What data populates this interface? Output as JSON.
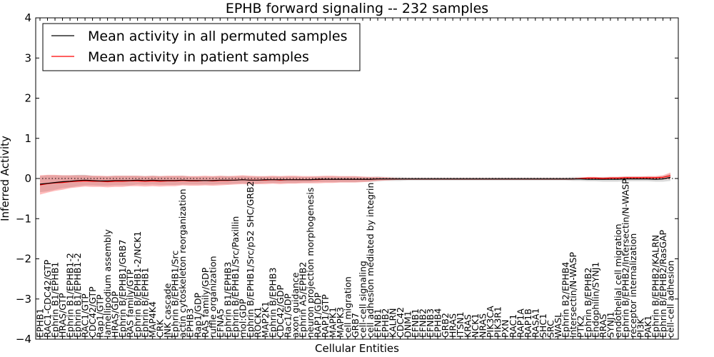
{
  "chart_data": {
    "type": "line",
    "title": "EPHB forward signaling -- 232 samples",
    "xlabel": "Cellular Entities",
    "ylabel": "Inferred Activity",
    "ylim": [
      -4,
      4
    ],
    "yticks": [
      "−4",
      "−3",
      "−2",
      "−1",
      "0",
      "1",
      "2",
      "3",
      "4"
    ],
    "yticks_values": [
      -4,
      -3,
      -2,
      -1,
      0,
      1,
      2,
      3,
      4
    ],
    "grid": false,
    "legend_position": "top-left",
    "legend": [
      {
        "label": "Mean activity in all permuted samples",
        "color": "#000000"
      },
      {
        "label": "Mean activity in patient samples",
        "color": "#ff0000"
      }
    ],
    "categories": [
      "EPHB1",
      "RAC1-CDC42/GTP",
      "Ephrin B1/EPHB1",
      "HRAS/GTP",
      "Ephrin B1/EPHB1-2",
      "Ephrin B1/EPHB1-2",
      "RAC1/GTP",
      "CDC42/GTP",
      "Rap1/GTP",
      "lamellipodium assembly",
      "HRAS/GDP",
      "Ephrin B/EPHB1/GRB7",
      "RAS family/GTP",
      "Ephrin B/EPHB1-2/NCK1",
      "Ephrin B/EPHB1",
      "MAP4K4",
      "CRK",
      "JNK cascade",
      "Ephrin B/EPHB1/Src",
      "actin cytoskeleton reorganization",
      "EPHB3",
      "Rap1/GDP",
      "RAS family/GDP",
      "ruffle organization",
      "EFNA5",
      "Ephrin B1/EPHB3",
      "Ephrin B/EPHB1/Src/Paxillin",
      "mol:GDP",
      "Ephrin B/EPHB1/Src/p52 SHC/GRB2",
      "ROCK1",
      "MAP2K1",
      "Ephrin B/EPHB3",
      "CDC42/GDP",
      "Rac1/GDP",
      "axon guidance",
      "Ephrin A5/EPHB2",
      "neuron projection morphogenesis",
      "RAP1/GDP",
      "RAP1/GTP",
      "MAPK1",
      "MAPK3",
      "cell migration",
      "GRB7",
      "cell-cell signaling",
      "cell adhesion mediated by integrin",
      "EFNB1",
      "EPHB2",
      "KALRN",
      "CDC42",
      "DNM1",
      "EFNB1",
      "EFNB2",
      "EFNB3",
      "EPHB4",
      "GRB2",
      "HRAS",
      "ITSN1",
      "KRAS",
      "NCK1",
      "NRAS",
      "PIK3CA",
      "PIK3R1",
      "PXN",
      "RAC1",
      "RAP1A",
      "RAP1B",
      "RASA1",
      "SHC1",
      "SRC",
      "WASL",
      "Ephrin B2/EPHB4",
      "Intersectin/N-WASP",
      "PTK2",
      "Ephrin B/EPHB2",
      "Endophilin/SYNJ1",
      "RRAS",
      "SYNJ1",
      "endothelial cell migration",
      "Ephrin B/EPHB2/Intersectin/N-WASP",
      "receptor internalization",
      "PI3K",
      "PAK1",
      "Ephrin B/EPHB2/KALRN",
      "Ephrin B/EPHB2/RasGAP",
      "cell-cell adhesion"
    ],
    "series": [
      {
        "name": "Mean activity in all permuted samples",
        "color": "#000000",
        "values": [
          -0.14,
          -0.12,
          -0.1,
          -0.08,
          -0.07,
          -0.05,
          -0.04,
          -0.05,
          -0.06,
          -0.06,
          -0.05,
          -0.05,
          -0.05,
          -0.04,
          -0.05,
          -0.04,
          -0.05,
          -0.05,
          -0.05,
          -0.04,
          -0.05,
          -0.05,
          -0.05,
          -0.05,
          -0.04,
          -0.04,
          -0.04,
          -0.03,
          -0.04,
          -0.04,
          -0.03,
          -0.03,
          -0.03,
          -0.03,
          -0.03,
          -0.03,
          -0.03,
          -0.02,
          -0.02,
          -0.02,
          -0.02,
          -0.02,
          -0.02,
          -0.02,
          -0.02,
          -0.01,
          -0.01,
          -0.01,
          -0.01,
          -0.01,
          -0.01,
          -0.01,
          -0.01,
          -0.01,
          -0.01,
          -0.01,
          -0.01,
          -0.01,
          -0.01,
          -0.01,
          -0.01,
          -0.01,
          -0.01,
          -0.01,
          -0.01,
          -0.01,
          -0.01,
          -0.01,
          -0.01,
          -0.01,
          -0.01,
          -0.01,
          -0.01,
          -0.02,
          -0.02,
          -0.02,
          -0.02,
          -0.02,
          -0.01,
          -0.01,
          -0.01,
          -0.01,
          -0.02,
          -0.01,
          0.03
        ],
        "band_width": [
          0.2,
          0.2,
          0.18,
          0.16,
          0.15,
          0.14,
          0.13,
          0.12,
          0.12,
          0.12,
          0.12,
          0.12,
          0.12,
          0.11,
          0.11,
          0.11,
          0.11,
          0.11,
          0.11,
          0.11,
          0.1,
          0.1,
          0.1,
          0.1,
          0.1,
          0.1,
          0.09,
          0.09,
          0.09,
          0.09,
          0.08,
          0.08,
          0.08,
          0.08,
          0.08,
          0.07,
          0.07,
          0.07,
          0.07,
          0.07,
          0.07,
          0.07,
          0.07,
          0.06,
          0.06,
          0.06,
          0.05,
          0.05,
          0.05,
          0.04,
          0.04,
          0.04,
          0.04,
          0.04,
          0.04,
          0.04,
          0.04,
          0.04,
          0.04,
          0.04,
          0.04,
          0.04,
          0.04,
          0.04,
          0.04,
          0.04,
          0.04,
          0.04,
          0.04,
          0.04,
          0.04,
          0.05,
          0.05,
          0.05,
          0.05,
          0.06,
          0.06,
          0.06,
          0.06,
          0.06,
          0.06,
          0.06,
          0.06,
          0.07,
          0.09
        ]
      },
      {
        "name": "Mean activity in patient samples",
        "color": "#ff0000",
        "values": [
          -0.16,
          -0.13,
          -0.11,
          -0.1,
          -0.08,
          -0.07,
          -0.06,
          -0.07,
          -0.07,
          -0.08,
          -0.07,
          -0.07,
          -0.06,
          -0.06,
          -0.07,
          -0.06,
          -0.07,
          -0.06,
          -0.06,
          -0.05,
          -0.06,
          -0.06,
          -0.05,
          -0.06,
          -0.05,
          -0.05,
          -0.04,
          -0.03,
          -0.04,
          -0.04,
          -0.04,
          -0.03,
          -0.04,
          -0.03,
          -0.03,
          -0.03,
          -0.03,
          -0.03,
          -0.02,
          -0.02,
          -0.02,
          -0.02,
          -0.02,
          -0.02,
          -0.02,
          -0.01,
          -0.01,
          -0.01,
          -0.01,
          -0.01,
          -0.01,
          -0.01,
          -0.01,
          -0.01,
          -0.01,
          -0.01,
          -0.01,
          -0.01,
          -0.01,
          -0.01,
          -0.01,
          -0.01,
          -0.01,
          -0.01,
          -0.01,
          -0.01,
          -0.01,
          -0.01,
          -0.01,
          -0.01,
          -0.01,
          -0.01,
          0.0,
          0.01,
          0.01,
          0.0,
          0.01,
          0.01,
          0.02,
          0.02,
          0.02,
          0.02,
          0.02,
          0.03,
          0.07
        ],
        "band_width": [
          0.24,
          0.22,
          0.2,
          0.18,
          0.16,
          0.15,
          0.14,
          0.14,
          0.14,
          0.14,
          0.14,
          0.14,
          0.13,
          0.13,
          0.13,
          0.13,
          0.13,
          0.13,
          0.13,
          0.12,
          0.12,
          0.12,
          0.12,
          0.12,
          0.12,
          0.11,
          0.11,
          0.11,
          0.11,
          0.1,
          0.1,
          0.1,
          0.1,
          0.1,
          0.1,
          0.09,
          0.09,
          0.09,
          0.09,
          0.09,
          0.08,
          0.08,
          0.08,
          0.07,
          0.06,
          0.05,
          0.04,
          0.03,
          0.02,
          0.02,
          0.02,
          0.02,
          0.02,
          0.02,
          0.02,
          0.02,
          0.02,
          0.02,
          0.02,
          0.02,
          0.02,
          0.02,
          0.02,
          0.02,
          0.02,
          0.02,
          0.02,
          0.02,
          0.02,
          0.02,
          0.02,
          0.02,
          0.02,
          0.03,
          0.03,
          0.03,
          0.03,
          0.03,
          0.03,
          0.03,
          0.03,
          0.04,
          0.04,
          0.05,
          0.08
        ]
      }
    ]
  }
}
